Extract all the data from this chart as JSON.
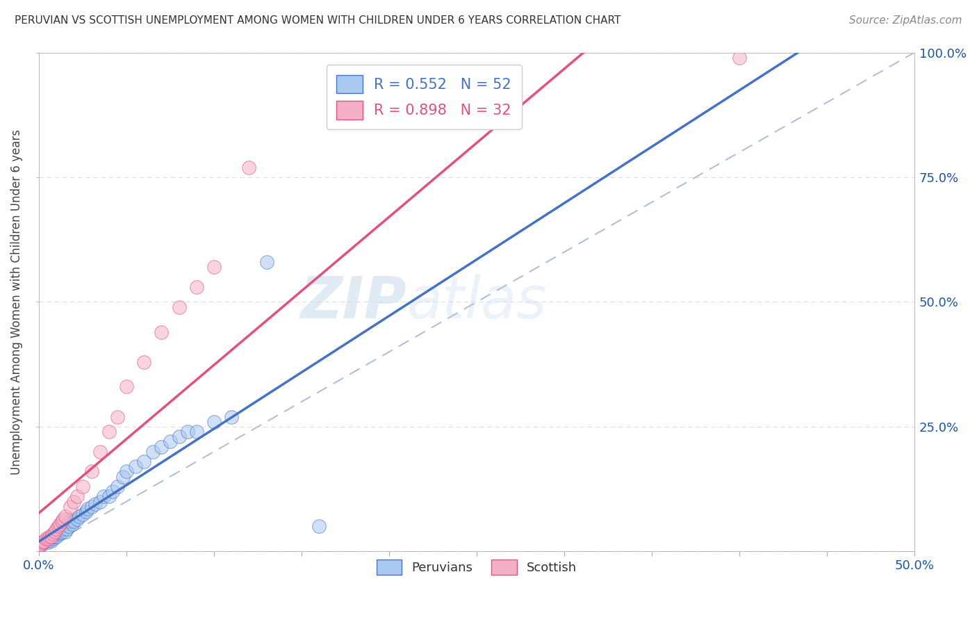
{
  "title": "PERUVIAN VS SCOTTISH UNEMPLOYMENT AMONG WOMEN WITH CHILDREN UNDER 6 YEARS CORRELATION CHART",
  "source": "Source: ZipAtlas.com",
  "ylabel": "Unemployment Among Women with Children Under 6 years",
  "xlim": [
    0.0,
    0.5
  ],
  "ylim": [
    0.0,
    1.0
  ],
  "xticks": [
    0.0,
    0.05,
    0.1,
    0.15,
    0.2,
    0.25,
    0.3,
    0.35,
    0.4,
    0.45,
    0.5
  ],
  "xticklabels": [
    "0.0%",
    "",
    "",
    "",
    "",
    "",
    "",
    "",
    "",
    "",
    "50.0%"
  ],
  "yticks": [
    0.0,
    0.25,
    0.5,
    0.75,
    1.0
  ],
  "ylabels_right": [
    "",
    "25.0%",
    "50.0%",
    "75.0%",
    "100.0%"
  ],
  "peruvians_color": "#A8C8F0",
  "scottish_color": "#F5B0C8",
  "peruvians_line_color": "#4472C4",
  "scottish_line_color": "#E05080",
  "ref_line_color": "#B0C0D8",
  "R_peruvians": 0.552,
  "N_peruvians": 52,
  "R_scottish": 0.898,
  "N_scottish": 32,
  "peruvians_x": [
    0.0,
    0.001,
    0.002,
    0.003,
    0.003,
    0.004,
    0.005,
    0.005,
    0.006,
    0.007,
    0.008,
    0.008,
    0.009,
    0.01,
    0.01,
    0.011,
    0.012,
    0.013,
    0.013,
    0.014,
    0.015,
    0.016,
    0.017,
    0.018,
    0.019,
    0.02,
    0.022,
    0.023,
    0.025,
    0.027,
    0.028,
    0.03,
    0.032,
    0.035,
    0.037,
    0.04,
    0.042,
    0.045,
    0.048,
    0.05,
    0.055,
    0.06,
    0.065,
    0.07,
    0.075,
    0.08,
    0.085,
    0.09,
    0.1,
    0.11,
    0.13,
    0.16
  ],
  "peruvians_y": [
    0.01,
    0.015,
    0.015,
    0.02,
    0.018,
    0.02,
    0.022,
    0.018,
    0.025,
    0.022,
    0.025,
    0.03,
    0.03,
    0.035,
    0.03,
    0.038,
    0.035,
    0.04,
    0.038,
    0.045,
    0.04,
    0.045,
    0.05,
    0.06,
    0.055,
    0.06,
    0.065,
    0.07,
    0.075,
    0.08,
    0.085,
    0.09,
    0.095,
    0.1,
    0.11,
    0.11,
    0.12,
    0.13,
    0.15,
    0.16,
    0.17,
    0.18,
    0.2,
    0.21,
    0.22,
    0.23,
    0.24,
    0.24,
    0.26,
    0.27,
    0.58,
    0.05
  ],
  "scottish_x": [
    0.0,
    0.001,
    0.002,
    0.003,
    0.004,
    0.005,
    0.006,
    0.007,
    0.008,
    0.009,
    0.01,
    0.011,
    0.012,
    0.013,
    0.014,
    0.015,
    0.018,
    0.02,
    0.022,
    0.025,
    0.03,
    0.035,
    0.04,
    0.045,
    0.05,
    0.06,
    0.07,
    0.08,
    0.09,
    0.1,
    0.12,
    0.4
  ],
  "scottish_y": [
    0.01,
    0.015,
    0.018,
    0.02,
    0.025,
    0.025,
    0.03,
    0.03,
    0.035,
    0.04,
    0.045,
    0.05,
    0.055,
    0.06,
    0.065,
    0.07,
    0.09,
    0.1,
    0.11,
    0.13,
    0.16,
    0.2,
    0.24,
    0.27,
    0.33,
    0.38,
    0.44,
    0.49,
    0.53,
    0.57,
    0.77,
    0.99
  ]
}
